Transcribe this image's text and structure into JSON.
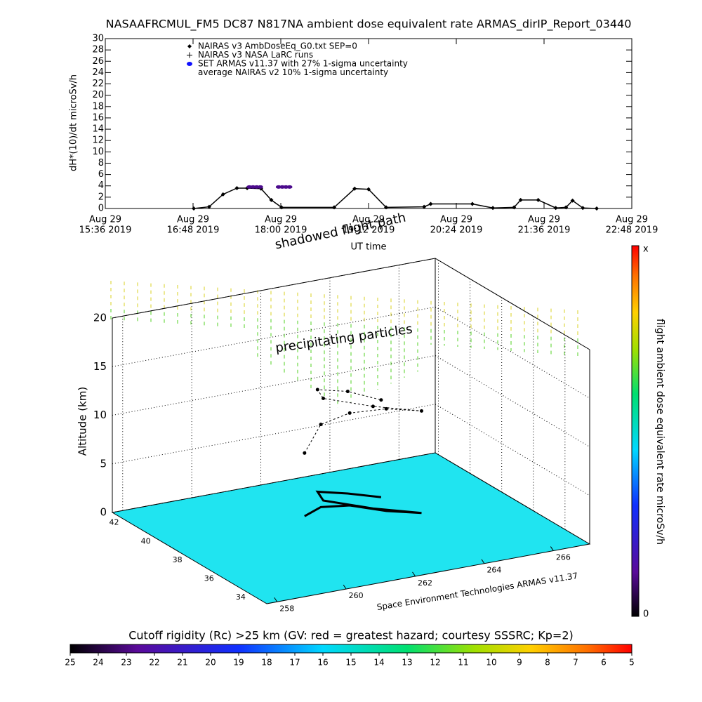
{
  "chart_data": {
    "type": "line",
    "title": "NASAAFRCMUL_FM5 DC87 N817NA ambient dose equivalent rate ARMAS_dirIP_Report_03440",
    "xlabel": "UT time",
    "ylabel": "dH*(10)/dt microSv/h",
    "xlim": [
      15.6,
      22.8
    ],
    "xticks": [
      {
        "value": 15.6,
        "label": [
          "Aug 29",
          "15:36 2019"
        ]
      },
      {
        "value": 16.8,
        "label": [
          "Aug 29",
          "16:48 2019"
        ]
      },
      {
        "value": 18.0,
        "label": [
          "Aug 29",
          "18:00 2019"
        ]
      },
      {
        "value": 19.2,
        "label": [
          "Aug 29",
          "19:12 2019"
        ]
      },
      {
        "value": 20.4,
        "label": [
          "Aug 29",
          "20:24 2019"
        ]
      },
      {
        "value": 21.6,
        "label": [
          "Aug 29",
          "21:36 2019"
        ]
      },
      {
        "value": 22.8,
        "label": [
          "Aug 29",
          "22:48 2019"
        ]
      }
    ],
    "ylim": [
      0,
      30
    ],
    "yticks": [
      0,
      2,
      4,
      6,
      8,
      10,
      12,
      14,
      16,
      18,
      20,
      22,
      24,
      26,
      28,
      30
    ],
    "legend": [
      "NAIRAS v3 AmbDoseEq_G0.txt SEP=0",
      "NAIRAS v3 NASA LaRC runs",
      "SET ARMAS v11.37 with 27% 1-sigma uncertainty",
      "average NAIRAS v2 10% 1-sigma uncertainty"
    ],
    "series": [
      {
        "color": "#000000",
        "marker": "diamond",
        "x": [
          16.81,
          17.02,
          17.21,
          17.4,
          17.54,
          17.73,
          17.87,
          18.01,
          18.73,
          19.01,
          19.2,
          19.44,
          19.96,
          20.05,
          20.62,
          20.9,
          21.19,
          21.28,
          21.52,
          21.76,
          21.9,
          21.99,
          22.13,
          22.32
        ],
        "values": [
          0,
          0.3,
          2.5,
          3.6,
          3.6,
          3.5,
          1.5,
          0.2,
          0.2,
          3.5,
          3.4,
          0.2,
          0.3,
          0.8,
          0.8,
          0.1,
          0.2,
          1.5,
          1.5,
          0.1,
          0.2,
          1.4,
          0.1,
          0
        ]
      },
      {
        "color": "#4b0a8c",
        "marker": "ellipse",
        "x": [
          17.57,
          17.62,
          17.67,
          17.72,
          17.97,
          18.02,
          18.07,
          18.12
        ],
        "values": [
          3.8,
          3.8,
          3.8,
          3.8,
          3.8,
          3.8,
          3.8,
          3.8
        ]
      }
    ]
  },
  "plot3d": {
    "zlabel": "Altitude (km)",
    "zlim": [
      0,
      20
    ],
    "zticks": [
      0,
      5,
      10,
      15,
      20
    ],
    "xlim": [
      257.7,
      267.05
    ],
    "xticks": [
      258,
      260,
      262,
      264,
      266
    ],
    "ylim": [
      32.44,
      42.2
    ],
    "yticks": [
      34,
      36,
      38,
      40,
      42
    ],
    "annotations": [
      "shadowed flight path",
      "precipitating particles"
    ],
    "credit": "Space Environment Technologies ARMAS v11.37",
    "flight": {
      "lon": [
        261.8,
        262.5,
        263.2,
        263.8,
        264.5,
        263.6,
        262.8,
        263.0,
        263.6,
        264.2
      ],
      "lat": [
        39.0,
        39.5,
        39.2,
        38.2,
        37.5,
        38.6,
        40.0,
        40.8,
        40.2,
        39.4
      ],
      "alt": [
        6.5,
        8.5,
        9.5,
        10.5,
        10.5,
        10.5,
        10.5,
        10.5,
        10.5,
        10.0
      ]
    }
  },
  "dose_colorbar": {
    "title": "flight ambient dose equivalent rate microSv/h",
    "top_label": "x",
    "bottom_value": 0
  },
  "rigidity_colorbar": {
    "title": "Cutoff rigidity (Rc) >25 km (GV: red = greatest hazard; courtesy SSSRC; Kp=2)",
    "lim": [
      25,
      5
    ],
    "ticks": [
      25,
      24,
      23,
      22,
      21,
      20,
      19,
      18,
      17,
      16,
      15,
      14,
      13,
      12,
      11,
      10,
      9,
      8,
      7,
      6,
      5
    ]
  }
}
